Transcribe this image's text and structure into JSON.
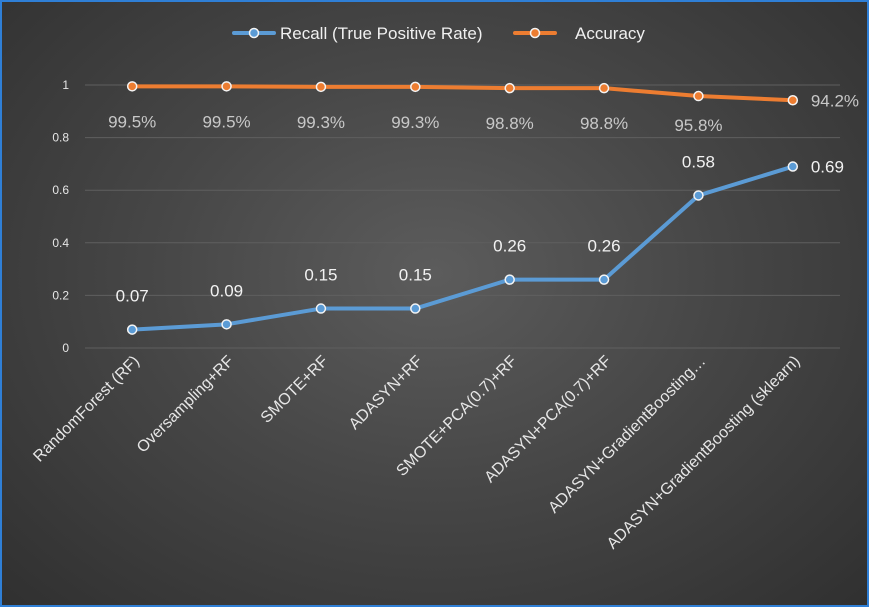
{
  "chart_data": {
    "type": "line",
    "title": "",
    "xlabel": "",
    "ylabel": "",
    "ylim": [
      0,
      1
    ],
    "yticks": [
      "0",
      "0.2",
      "0.4",
      "0.6",
      "0.8",
      "1"
    ],
    "grid": true,
    "legend_position": "top",
    "categories": [
      "RandomForest (RF)",
      "Oversampling+RF",
      "SMOTE+RF",
      "ADASYN+RF",
      "SMOTE+PCA(0.7)+RF",
      "ADASYN+PCA(0.7)+RF",
      "ADASYN+GradientBoosting…",
      "ADASYN+GradientBoosting (sklearn)"
    ],
    "series": [
      {
        "name": "Recall (True Positive Rate)",
        "color": "#5b9bd5",
        "values": [
          0.07,
          0.09,
          0.15,
          0.15,
          0.26,
          0.26,
          0.58,
          0.69
        ],
        "labels": [
          "0.07",
          "0.09",
          "0.15",
          "0.15",
          "0.26",
          "0.26",
          "0.58",
          "0.69"
        ]
      },
      {
        "name": "Accuracy",
        "color": "#ed7d31",
        "values": [
          0.995,
          0.995,
          0.993,
          0.993,
          0.988,
          0.988,
          0.958,
          0.942
        ],
        "labels": [
          "99.5%",
          "99.5%",
          "99.3%",
          "99.3%",
          "98.8%",
          "98.8%",
          "95.8%",
          "94.2%"
        ]
      }
    ]
  }
}
